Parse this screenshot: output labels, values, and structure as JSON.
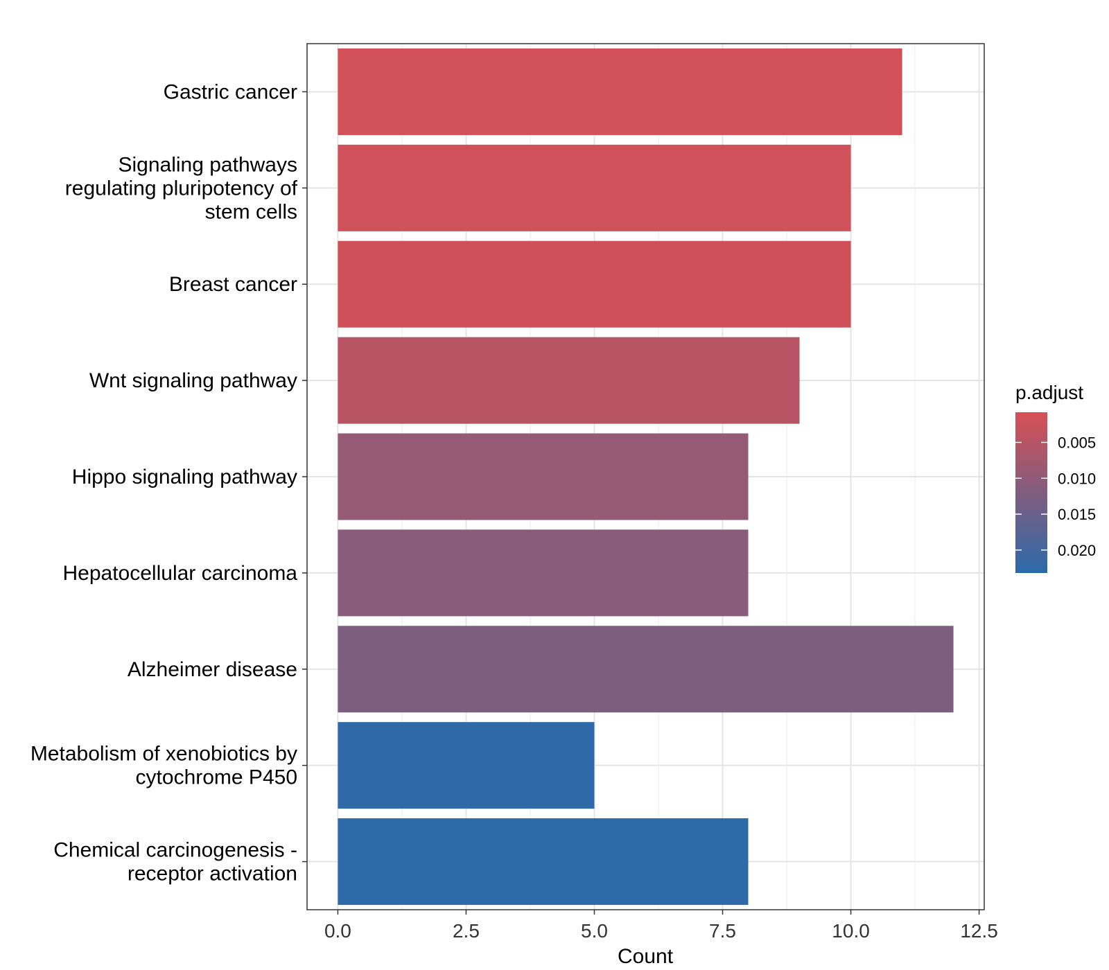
{
  "chart_data": {
    "type": "bar",
    "orientation": "horizontal",
    "categories": [
      [
        "Gastric cancer"
      ],
      [
        "Signaling pathways",
        "regulating pluripotency of",
        "stem cells"
      ],
      [
        "Breast cancer"
      ],
      [
        "Wnt signaling pathway"
      ],
      [
        "Hippo signaling pathway"
      ],
      [
        "Hepatocellular carcinoma"
      ],
      [
        "Alzheimer disease"
      ],
      [
        "Metabolism of xenobiotics by",
        "cytochrome P450"
      ],
      [
        "Chemical carcinogenesis -",
        "receptor activation"
      ]
    ],
    "values": [
      11,
      10,
      10,
      9,
      8,
      8,
      12,
      5,
      8
    ],
    "p_adjust": [
      0.0015,
      0.0018,
      0.002,
      0.0048,
      0.0095,
      0.0108,
      0.0125,
      0.0225,
      0.0228
    ],
    "xlabel": "Count",
    "ylabel": "",
    "xlim": [
      -0.6,
      12.6
    ],
    "x_ticks": [
      "0.0",
      "2.5",
      "5.0",
      "7.5",
      "10.0",
      "12.5"
    ],
    "x_tick_values": [
      0,
      2.5,
      5,
      7.5,
      10,
      12.5
    ],
    "grid": true,
    "legend": {
      "title": "p.adjust",
      "position": "right",
      "range": [
        0.0008,
        0.0232
      ],
      "ticks": [
        "0.005",
        "0.010",
        "0.015",
        "0.020"
      ],
      "tick_values": [
        0.005,
        0.01,
        0.015,
        0.02
      ],
      "low_color": "#d75055",
      "high_color": "#2b6aaa"
    },
    "colors": {
      "panel_border": "#333333",
      "grid_major": "#e5e5e5",
      "grid_minor": "#f2f2f2",
      "axis_tick": "#333333"
    }
  }
}
